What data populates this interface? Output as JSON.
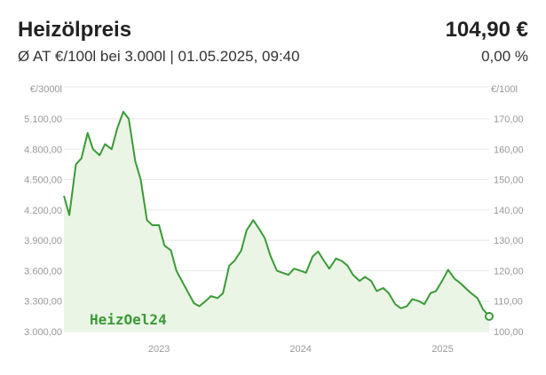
{
  "header": {
    "title": "Heizölpreis",
    "price": "104,90 €",
    "subtitle": "Ø AT €/100l bei 3.000l | 01.05.2025, 09:40",
    "change": "0,00 %"
  },
  "watermark": "HeizOel24",
  "colors": {
    "line": "#3b9a36",
    "fill": "#eaf5e6",
    "grid": "#e6e6e6",
    "tick": "#999999"
  },
  "chart_data": {
    "type": "area",
    "left_axis": {
      "unit_label": "€/3000l",
      "ylim": [
        3000,
        5300
      ],
      "ticks": [
        3000,
        3300,
        3600,
        3900,
        4200,
        4500,
        4800,
        5100
      ],
      "tick_labels": [
        "3.000,00",
        "3.300,00",
        "3.600,00",
        "3.900,00",
        "4.200,00",
        "4.500,00",
        "4.800,00",
        "5.100,00"
      ]
    },
    "right_axis": {
      "unit_label": "€/100l",
      "ticks": [
        100,
        110,
        120,
        130,
        140,
        150,
        160,
        170
      ],
      "tick_labels": [
        "100,00",
        "110,00",
        "120,00",
        "130,00",
        "140,00",
        "150,00",
        "160,00",
        "170,00"
      ]
    },
    "x_axis": {
      "xlim": [
        "2022-05-01",
        "2025-05-01"
      ],
      "ticks": [
        "2023-01-01",
        "2024-01-01",
        "2025-01-01"
      ],
      "tick_labels": [
        "2023",
        "2024",
        "2025"
      ]
    },
    "grid": true,
    "series": [
      {
        "x": [
          "2022-05-01",
          "2022-05-15",
          "2022-06-01",
          "2022-06-15",
          "2022-07-01",
          "2022-07-15",
          "2022-08-01",
          "2022-08-15",
          "2022-09-01",
          "2022-09-15",
          "2022-10-01",
          "2022-10-15",
          "2022-11-01",
          "2022-11-15",
          "2022-12-01",
          "2022-12-15",
          "2023-01-01",
          "2023-01-15",
          "2023-02-01",
          "2023-02-15",
          "2023-03-01",
          "2023-03-15",
          "2023-04-01",
          "2023-04-15",
          "2023-05-01",
          "2023-05-15",
          "2023-06-01",
          "2023-06-15",
          "2023-07-01",
          "2023-07-15",
          "2023-08-01",
          "2023-08-15",
          "2023-09-01",
          "2023-09-15",
          "2023-10-01",
          "2023-10-15",
          "2023-11-01",
          "2023-11-15",
          "2023-12-01",
          "2023-12-15",
          "2024-01-01",
          "2024-01-15",
          "2024-02-01",
          "2024-02-15",
          "2024-03-01",
          "2024-03-15",
          "2024-04-01",
          "2024-04-15",
          "2024-05-01",
          "2024-05-15",
          "2024-06-01",
          "2024-06-15",
          "2024-07-01",
          "2024-07-15",
          "2024-08-01",
          "2024-08-15",
          "2024-09-01",
          "2024-09-15",
          "2024-10-01",
          "2024-10-15",
          "2024-11-01",
          "2024-11-15",
          "2024-12-01",
          "2024-12-15",
          "2025-01-01",
          "2025-01-15",
          "2025-02-01",
          "2025-02-15",
          "2025-03-01",
          "2025-03-15",
          "2025-04-01",
          "2025-04-15",
          "2025-05-01"
        ],
        "y": [
          4340,
          4150,
          4650,
          4710,
          4960,
          4800,
          4740,
          4850,
          4800,
          5000,
          5170,
          5100,
          4680,
          4500,
          4100,
          4050,
          4050,
          3850,
          3800,
          3600,
          3500,
          3400,
          3280,
          3250,
          3300,
          3350,
          3330,
          3380,
          3650,
          3700,
          3800,
          4000,
          4100,
          4020,
          3920,
          3750,
          3600,
          3580,
          3560,
          3620,
          3600,
          3580,
          3740,
          3790,
          3700,
          3620,
          3720,
          3700,
          3650,
          3560,
          3500,
          3540,
          3500,
          3400,
          3430,
          3380,
          3270,
          3230,
          3250,
          3320,
          3300,
          3270,
          3380,
          3400,
          3510,
          3610,
          3520,
          3480,
          3430,
          3380,
          3330,
          3220,
          3150
        ]
      }
    ]
  }
}
